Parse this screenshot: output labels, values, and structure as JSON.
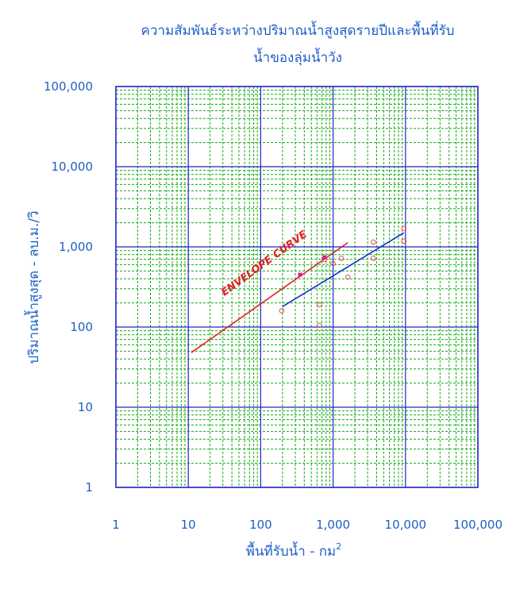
{
  "chart_data": {
    "type": "scatter",
    "title_line1": "ความสัมพันธ์ระหว่างปริมาณน้ำสูงสุดรายปีและพื้นที่รับ",
    "title_line2": "น้ำของลุ่มน้ำวัง",
    "xlabel": "พื้นที่รับน้ำ - กม",
    "xlabel_superscript": "2",
    "ylabel": "ปริมาณน้ำสูงสุด - ลบ.ม./วิ",
    "x_scale": "log",
    "y_scale": "log",
    "xlim": [
      1,
      100000
    ],
    "ylim": [
      1,
      100000
    ],
    "x_ticks": [
      {
        "value": 1,
        "label": "1"
      },
      {
        "value": 10,
        "label": "10"
      },
      {
        "value": 100,
        "label": "100"
      },
      {
        "value": 1000,
        "label": "1,000"
      },
      {
        "value": 10000,
        "label": "10,000"
      },
      {
        "value": 100000,
        "label": "100,000"
      }
    ],
    "y_ticks": [
      {
        "value": 1,
        "label": "1"
      },
      {
        "value": 10,
        "label": "10"
      },
      {
        "value": 100,
        "label": "100"
      },
      {
        "value": 1000,
        "label": "1,000"
      },
      {
        "value": 10000,
        "label": "10,000"
      },
      {
        "value": 100000,
        "label": "100,000"
      }
    ],
    "grid": {
      "major": true,
      "minor": true
    },
    "colors": {
      "text": "#1f5fc8",
      "major_grid": "#2222cc",
      "minor_grid": "#11aa11",
      "envelope": "#e02020",
      "regression": "#1030d0",
      "points": "#e05050",
      "highlight": "#e0208a"
    },
    "envelope_label": "ENVELOPE CURVE",
    "envelope_curve": {
      "x": [
        11,
        1600
      ],
      "y": [
        48,
        1130
      ]
    },
    "regression_line": {
      "x": [
        200,
        9500
      ],
      "y": [
        180,
        1500
      ]
    },
    "points": [
      {
        "x": 195,
        "y": 160
      },
      {
        "x": 650,
        "y": 105
      },
      {
        "x": 650,
        "y": 190
      },
      {
        "x": 760,
        "y": 700
      },
      {
        "x": 1000,
        "y": 620
      },
      {
        "x": 1300,
        "y": 720
      },
      {
        "x": 1600,
        "y": 420
      },
      {
        "x": 3600,
        "y": 1150
      },
      {
        "x": 3600,
        "y": 720
      },
      {
        "x": 9500,
        "y": 1180
      },
      {
        "x": 9500,
        "y": 1700
      }
    ],
    "highlight_points": [
      {
        "x": 350,
        "y": 450
      },
      {
        "x": 760,
        "y": 740
      }
    ]
  }
}
